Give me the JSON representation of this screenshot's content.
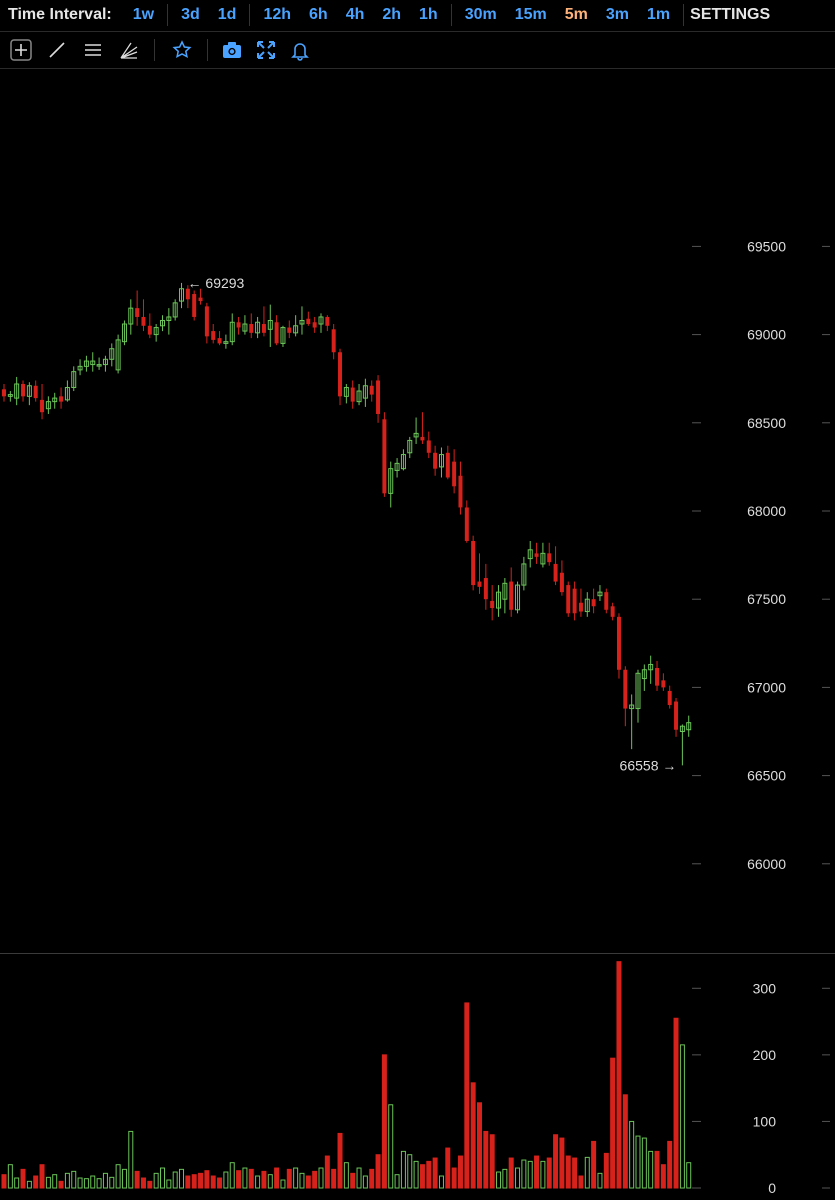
{
  "toolbar": {
    "label": "Time Interval:",
    "groups": [
      [
        {
          "label": "1w"
        }
      ],
      [
        {
          "label": "3d"
        },
        {
          "label": "1d"
        }
      ],
      [
        {
          "label": "12h"
        },
        {
          "label": "6h"
        },
        {
          "label": "4h"
        },
        {
          "label": "2h"
        },
        {
          "label": "1h"
        }
      ],
      [
        {
          "label": "30m"
        },
        {
          "label": "15m"
        },
        {
          "label": "5m",
          "active": true
        },
        {
          "label": "3m"
        },
        {
          "label": "1m"
        }
      ]
    ],
    "settings": "SETTINGS",
    "tools": [
      "crosshair-icon",
      "trendline-icon",
      "horizontal-lines-icon",
      "fan-icon",
      "star-icon",
      "camera-icon",
      "fullscreen-icon",
      "bell-icon"
    ]
  },
  "colors": {
    "up": "#6cc55a",
    "down": "#d6221b",
    "accent": "#4aa3ff",
    "active": "#ffb37a"
  },
  "chart_data": [
    {
      "type": "candlestick",
      "y_ticks": [
        69500,
        69000,
        68500,
        68000,
        67500,
        67000,
        66500,
        66000
      ],
      "ylim": [
        65500,
        70500
      ],
      "max_marker": {
        "value": 69293,
        "label": "69293"
      },
      "min_marker": {
        "value": 66558,
        "label": "66558"
      },
      "candles": [
        [
          68690,
          68720,
          68620,
          68650
        ],
        [
          68650,
          68680,
          68620,
          68660
        ],
        [
          68640,
          68760,
          68600,
          68720
        ],
        [
          68720,
          68740,
          68620,
          68650
        ],
        [
          68650,
          68730,
          68600,
          68710
        ],
        [
          68710,
          68740,
          68620,
          68640
        ],
        [
          68630,
          68720,
          68520,
          68560
        ],
        [
          68580,
          68650,
          68550,
          68620
        ],
        [
          68620,
          68670,
          68580,
          68640
        ],
        [
          68650,
          68700,
          68580,
          68620
        ],
        [
          68630,
          68740,
          68620,
          68700
        ],
        [
          68700,
          68820,
          68680,
          68790
        ],
        [
          68800,
          68860,
          68770,
          68820
        ],
        [
          68820,
          68880,
          68790,
          68850
        ],
        [
          68830,
          68900,
          68790,
          68850
        ],
        [
          68830,
          68870,
          68800,
          68830
        ],
        [
          68830,
          68880,
          68790,
          68860
        ],
        [
          68860,
          68950,
          68820,
          68920
        ],
        [
          68800,
          69000,
          68780,
          68970
        ],
        [
          68960,
          69080,
          68940,
          69060
        ],
        [
          69060,
          69200,
          69000,
          69150
        ],
        [
          69150,
          69250,
          69050,
          69100
        ],
        [
          69100,
          69200,
          69020,
          69050
        ],
        [
          69050,
          69120,
          68980,
          69000
        ],
        [
          69000,
          69060,
          68960,
          69040
        ],
        [
          69050,
          69110,
          69020,
          69080
        ],
        [
          69080,
          69150,
          69000,
          69100
        ],
        [
          69100,
          69200,
          69080,
          69180
        ],
        [
          69190,
          69293,
          69150,
          69260
        ],
        [
          69260,
          69280,
          69150,
          69200
        ],
        [
          69230,
          69250,
          69080,
          69100
        ],
        [
          69210,
          69260,
          69170,
          69190
        ],
        [
          69160,
          69180,
          68950,
          68990
        ],
        [
          69020,
          69060,
          68950,
          68970
        ],
        [
          68980,
          69020,
          68940,
          68950
        ],
        [
          68950,
          69000,
          68920,
          68960
        ],
        [
          68960,
          69120,
          68940,
          69070
        ],
        [
          69070,
          69100,
          69000,
          69040
        ],
        [
          69020,
          69110,
          69000,
          69060
        ],
        [
          69060,
          69120,
          68980,
          69010
        ],
        [
          69010,
          69100,
          68980,
          69070
        ],
        [
          69060,
          69160,
          68990,
          69010
        ],
        [
          69030,
          69170,
          68930,
          69080
        ],
        [
          69070,
          69110,
          68940,
          68950
        ],
        [
          68950,
          69050,
          68930,
          69040
        ],
        [
          69040,
          69080,
          68980,
          69010
        ],
        [
          69010,
          69110,
          68990,
          69050
        ],
        [
          69060,
          69160,
          69000,
          69080
        ],
        [
          69090,
          69130,
          69050,
          69060
        ],
        [
          69070,
          69100,
          69010,
          69040
        ],
        [
          69060,
          69120,
          69010,
          69100
        ],
        [
          69100,
          69110,
          69020,
          69050
        ],
        [
          69030,
          69060,
          68860,
          68900
        ],
        [
          68900,
          68920,
          68600,
          68650
        ],
        [
          68650,
          68720,
          68610,
          68700
        ],
        [
          68700,
          68740,
          68580,
          68620
        ],
        [
          68620,
          68720,
          68600,
          68680
        ],
        [
          68640,
          68750,
          68590,
          68710
        ],
        [
          68710,
          68740,
          68620,
          68660
        ],
        [
          68740,
          68770,
          68500,
          68550
        ],
        [
          68520,
          68560,
          68080,
          68100
        ],
        [
          68100,
          68280,
          68020,
          68240
        ],
        [
          68230,
          68300,
          68190,
          68270
        ],
        [
          68240,
          68350,
          68230,
          68320
        ],
        [
          68330,
          68420,
          68300,
          68400
        ],
        [
          68420,
          68530,
          68380,
          68440
        ],
        [
          68420,
          68560,
          68380,
          68400
        ],
        [
          68400,
          68450,
          68300,
          68330
        ],
        [
          68330,
          68370,
          68200,
          68240
        ],
        [
          68250,
          68360,
          68190,
          68320
        ],
        [
          68330,
          68370,
          68180,
          68190
        ],
        [
          68280,
          68350,
          68100,
          68140
        ],
        [
          68200,
          68280,
          67980,
          68020
        ],
        [
          68020,
          68060,
          67820,
          67830
        ],
        [
          67830,
          67860,
          67550,
          67580
        ],
        [
          67600,
          67760,
          67530,
          67570
        ],
        [
          67620,
          67700,
          67440,
          67500
        ],
        [
          67490,
          67580,
          67380,
          67450
        ],
        [
          67450,
          67580,
          67400,
          67540
        ],
        [
          67500,
          67620,
          67420,
          67590
        ],
        [
          67600,
          67680,
          67400,
          67440
        ],
        [
          67440,
          67600,
          67420,
          67580
        ],
        [
          67580,
          67740,
          67550,
          67700
        ],
        [
          67730,
          67830,
          67680,
          67780
        ],
        [
          67760,
          67820,
          67700,
          67740
        ],
        [
          67700,
          67820,
          67680,
          67760
        ],
        [
          67760,
          67820,
          67690,
          67710
        ],
        [
          67700,
          67800,
          67580,
          67600
        ],
        [
          67650,
          67720,
          67520,
          67540
        ],
        [
          67580,
          67600,
          67400,
          67420
        ],
        [
          67560,
          67600,
          67380,
          67420
        ],
        [
          67480,
          67560,
          67400,
          67430
        ],
        [
          67430,
          67540,
          67400,
          67500
        ],
        [
          67500,
          67560,
          67420,
          67460
        ],
        [
          67520,
          67580,
          67490,
          67540
        ],
        [
          67540,
          67560,
          67420,
          67440
        ],
        [
          67460,
          67480,
          67380,
          67400
        ],
        [
          67400,
          67420,
          67050,
          67100
        ],
        [
          67100,
          67120,
          66780,
          66880
        ],
        [
          66880,
          66960,
          66650,
          66900
        ],
        [
          66880,
          67100,
          66800,
          67080
        ],
        [
          67050,
          67130,
          66980,
          67100
        ],
        [
          67100,
          67180,
          67020,
          67130
        ],
        [
          67110,
          67150,
          66980,
          67010
        ],
        [
          67040,
          67080,
          66980,
          67000
        ],
        [
          66980,
          67010,
          66880,
          66900
        ],
        [
          66920,
          66940,
          66720,
          66760
        ],
        [
          66750,
          66790,
          66558,
          66780
        ],
        [
          66760,
          66840,
          66720,
          66800
        ]
      ],
      "volume": {
        "y_ticks": [
          300,
          200,
          100,
          0
        ],
        "ylim": [
          0,
          350
        ],
        "values": [
          20,
          35,
          15,
          28,
          10,
          18,
          35,
          16,
          20,
          10,
          22,
          25,
          15,
          14,
          18,
          14,
          22,
          16,
          35,
          28,
          85,
          25,
          15,
          10,
          22,
          30,
          12,
          24,
          28,
          18,
          20,
          22,
          26,
          18,
          15,
          24,
          38,
          26,
          30,
          28,
          18,
          25,
          20,
          30,
          12,
          28,
          30,
          22,
          18,
          25,
          30,
          48,
          28,
          82,
          38,
          22,
          30,
          18,
          28,
          50,
          200,
          125,
          20,
          55,
          50,
          40,
          35,
          40,
          45,
          18,
          60,
          30,
          48,
          278,
          158,
          128,
          85,
          80,
          24,
          28,
          45,
          30,
          42,
          40,
          48,
          40,
          45,
          80,
          75,
          48,
          45,
          18,
          46,
          70,
          22,
          52,
          195,
          340,
          140,
          100,
          78,
          75,
          55,
          55,
          35,
          70,
          255,
          215,
          38
        ]
      }
    }
  ]
}
